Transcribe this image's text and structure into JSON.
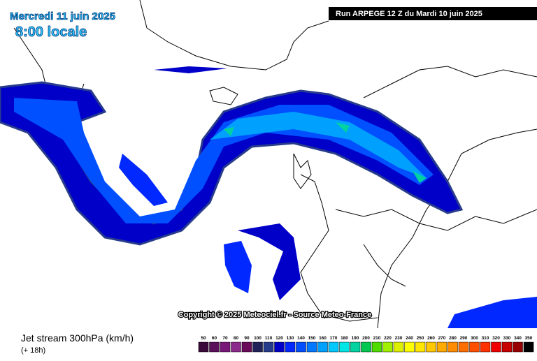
{
  "header": {
    "date": "Mercredi 11 juin 2025",
    "time": "8:00 locale",
    "run": "Run ARPEGE 12 Z du Mardi 10 juin 2025"
  },
  "copyright": "Copyright © 2025 Meteociel.fr - Source Meteo-France",
  "legend": {
    "title": "Jet stream 300hPa (km/h)",
    "forecast": "(+ 18h)",
    "scale": [
      {
        "value": 50,
        "color": "#3a0a3a"
      },
      {
        "value": 60,
        "color": "#5a105a"
      },
      {
        "value": 70,
        "color": "#7a187a"
      },
      {
        "value": 80,
        "color": "#8c2a8c"
      },
      {
        "value": 90,
        "color": "#6a0a5a"
      },
      {
        "value": 100,
        "color": "#22225a"
      },
      {
        "value": 110,
        "color": "#283c8c"
      },
      {
        "value": 120,
        "color": "#0000c8"
      },
      {
        "value": 130,
        "color": "#0028ff"
      },
      {
        "value": 140,
        "color": "#0050ff"
      },
      {
        "value": 150,
        "color": "#0078ff"
      },
      {
        "value": 160,
        "color": "#00a0ff"
      },
      {
        "value": 170,
        "color": "#00c8ff"
      },
      {
        "value": 180,
        "color": "#00e6e6"
      },
      {
        "value": 190,
        "color": "#00d2a0"
      },
      {
        "value": 200,
        "color": "#00c850"
      },
      {
        "value": 210,
        "color": "#50dc00"
      },
      {
        "value": 220,
        "color": "#a0f000"
      },
      {
        "value": 230,
        "color": "#dcf000"
      },
      {
        "value": 240,
        "color": "#ffff00"
      },
      {
        "value": 250,
        "color": "#ffe600"
      },
      {
        "value": 260,
        "color": "#ffc800"
      },
      {
        "value": 270,
        "color": "#ffaa00"
      },
      {
        "value": 280,
        "color": "#ff8c00"
      },
      {
        "value": 290,
        "color": "#ff6e00"
      },
      {
        "value": 300,
        "color": "#ff5000"
      },
      {
        "value": 310,
        "color": "#ff3200"
      },
      {
        "value": 320,
        "color": "#f00000"
      },
      {
        "value": 330,
        "color": "#c80000"
      },
      {
        "value": 340,
        "color": "#960000"
      },
      {
        "value": 350,
        "color": "#000000"
      }
    ]
  }
}
